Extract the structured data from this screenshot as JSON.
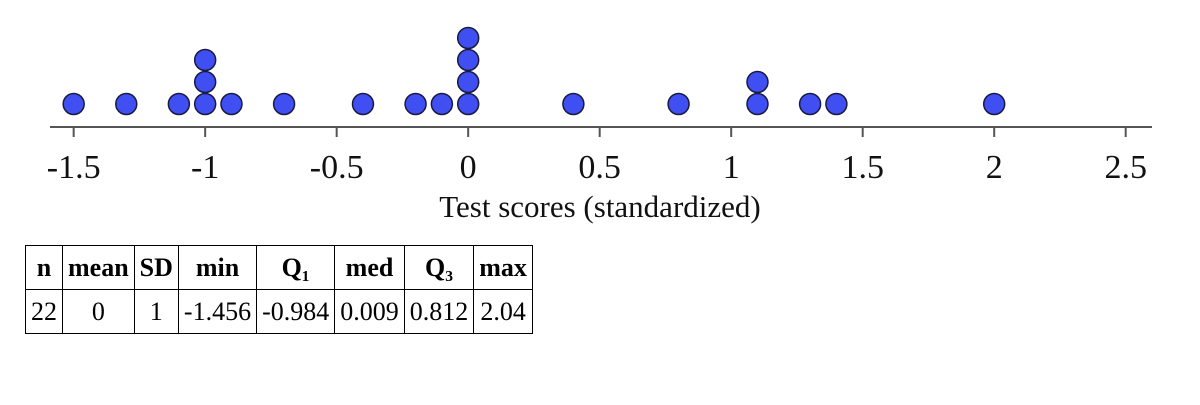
{
  "chart_data": {
    "type": "dot",
    "xlabel": "Test scores (standardized)",
    "x": [
      -1.5,
      -1.3,
      -1.1,
      -1,
      -1,
      -1,
      -0.9,
      -0.7,
      -0.4,
      -0.2,
      -0.1,
      0,
      0,
      0,
      0,
      0.4,
      0.8,
      1.1,
      1.1,
      1.3,
      1.4,
      2
    ],
    "color": "#3f4ff2",
    "xlim": [
      -1.59,
      2.6
    ],
    "xticks": [
      -1.5,
      -1,
      -0.5,
      0,
      0.5,
      1,
      1.5,
      2,
      2.5
    ]
  },
  "table": {
    "headers": [
      "n",
      "mean",
      "SD",
      "min",
      "Q₁",
      "med",
      "Q₃",
      "max"
    ],
    "rows": [
      [
        22,
        0,
        1,
        -1.456,
        -0.984,
        0.009,
        0.812,
        2.04
      ]
    ]
  }
}
